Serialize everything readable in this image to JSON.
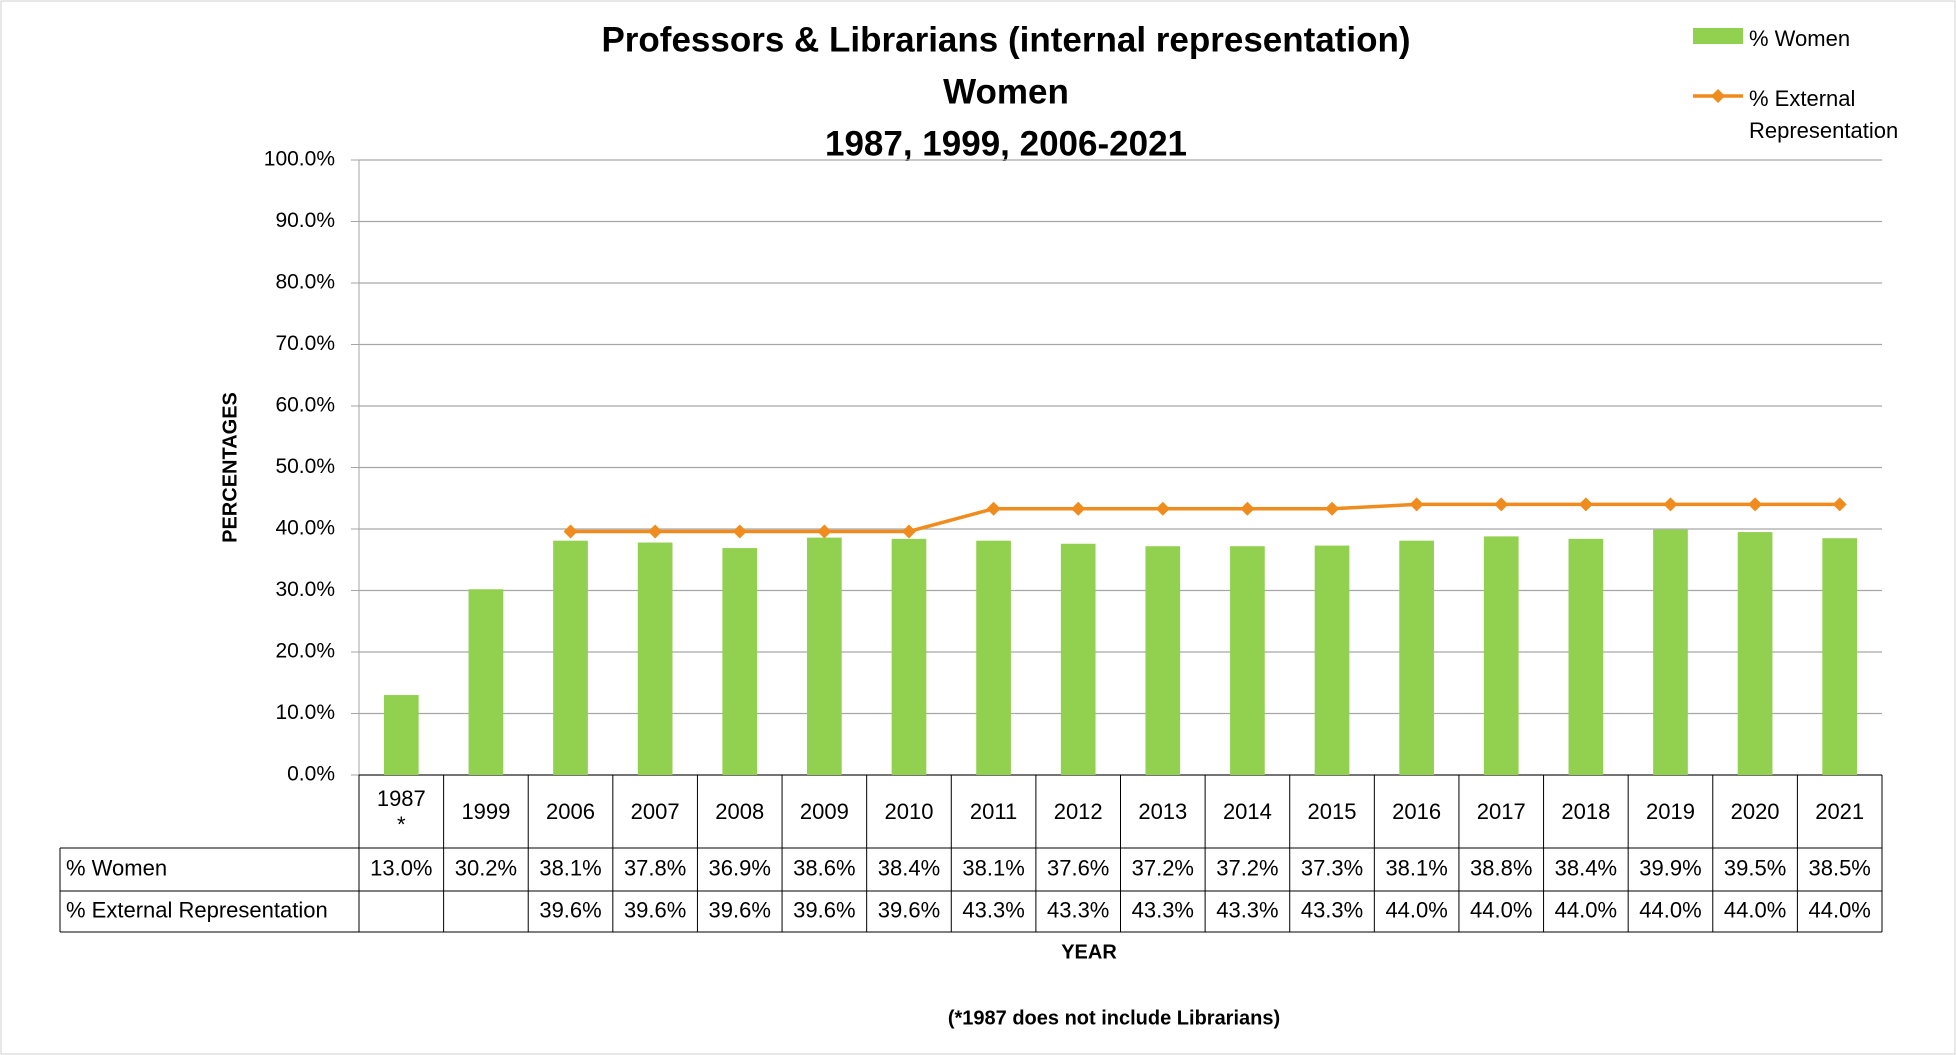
{
  "chart_data": {
    "type": "bar",
    "title": [
      "Professors & Librarians (internal representation)",
      "Women",
      "1987, 1999, 2006-2021"
    ],
    "categories": [
      "1987\n*",
      "1999",
      "2006",
      "2007",
      "2008",
      "2009",
      "2010",
      "2011",
      "2012",
      "2013",
      "2014",
      "2015",
      "2016",
      "2017",
      "2018",
      "2019",
      "2020",
      "2021"
    ],
    "series": [
      {
        "name": "% Women",
        "type": "bar",
        "color": "#92d050",
        "values": [
          13.0,
          30.2,
          38.1,
          37.8,
          36.9,
          38.6,
          38.4,
          38.1,
          37.6,
          37.2,
          37.2,
          37.3,
          38.1,
          38.8,
          38.4,
          39.9,
          39.5,
          38.5
        ],
        "value_labels": [
          "13.0%",
          "30.2%",
          "38.1%",
          "37.8%",
          "36.9%",
          "38.6%",
          "38.4%",
          "38.1%",
          "37.6%",
          "37.2%",
          "37.2%",
          "37.3%",
          "38.1%",
          "38.8%",
          "38.4%",
          "39.9%",
          "39.5%",
          "38.5%"
        ]
      },
      {
        "name": "% External Representation",
        "type": "line",
        "color": "#f08c1e",
        "values": [
          null,
          null,
          39.6,
          39.6,
          39.6,
          39.6,
          39.6,
          43.3,
          43.3,
          43.3,
          43.3,
          43.3,
          44.0,
          44.0,
          44.0,
          44.0,
          44.0,
          44.0
        ],
        "value_labels": [
          null,
          null,
          "39.6%",
          "39.6%",
          "39.6%",
          "39.6%",
          "39.6%",
          "43.3%",
          "43.3%",
          "43.3%",
          "43.3%",
          "43.3%",
          "44.0%",
          "44.0%",
          "44.0%",
          "44.0%",
          "44.0%",
          "44.0%"
        ]
      }
    ],
    "ylabel": "PERCENTAGES",
    "xlabel": "YEAR",
    "note": "(*1987 does not include Librarians)",
    "ylim": [
      0,
      100
    ],
    "yticks": [
      {
        "value": 0,
        "label": "0.0%"
      },
      {
        "value": 10,
        "label": "10.0%"
      },
      {
        "value": 20,
        "label": "20.0%"
      },
      {
        "value": 30,
        "label": "30.0%"
      },
      {
        "value": 40,
        "label": "40.0%"
      },
      {
        "value": 50,
        "label": "50.0%"
      },
      {
        "value": 60,
        "label": "60.0%"
      },
      {
        "value": 70,
        "label": "70.0%"
      },
      {
        "value": 80,
        "label": "80.0%"
      },
      {
        "value": 90,
        "label": "90.0%"
      },
      {
        "value": 100,
        "label": "100.0%"
      }
    ],
    "grid": true,
    "legend": "top-right",
    "data_table": true
  }
}
